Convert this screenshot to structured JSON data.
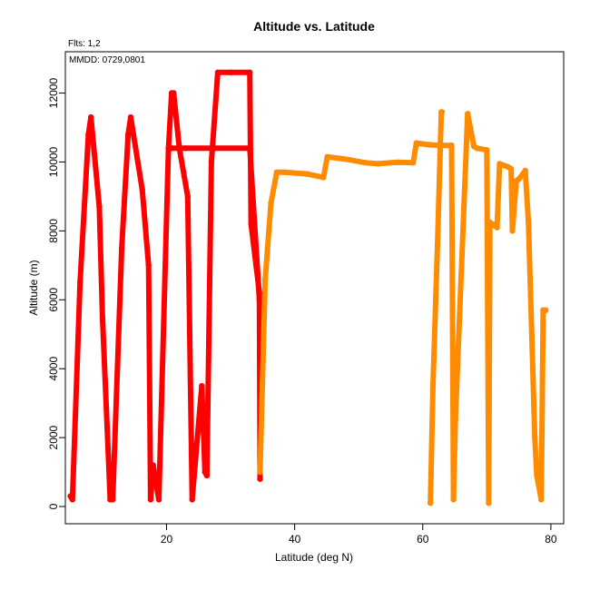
{
  "chart_data": {
    "type": "line",
    "title": "Altitude vs. Latitude",
    "annotations": [
      "Flts: 1,2",
      "MMDD: 0729,0801"
    ],
    "xlabel": "Latitude (deg N)",
    "ylabel": "Altitude (m)",
    "xlim": [
      4.2,
      82
    ],
    "ylim": [
      -500,
      13200
    ],
    "xticks": [
      20,
      40,
      60,
      80
    ],
    "yticks": [
      0,
      2000,
      4000,
      6000,
      8000,
      10000,
      12000
    ],
    "grid": false,
    "series": [
      {
        "color": "#ff0000",
        "x": [
          5.0,
          5.3,
          6.5,
          7.8,
          8.2,
          9.5,
          10.0,
          11.2,
          11.4,
          11.6,
          13.0,
          14.0,
          14.4,
          16.2,
          17.2,
          17.5,
          17.9,
          18.8,
          20.3,
          20.8,
          21.1,
          22.0,
          23.3,
          24.0,
          25.5,
          26.0,
          26.3,
          27.0,
          28.0,
          30.0,
          33.0,
          33.2,
          34.5,
          34.6
        ],
        "y": [
          300,
          200,
          6500,
          10800,
          11300,
          8700,
          5500,
          200,
          200,
          200,
          7500,
          10800,
          11300,
          9200,
          7000,
          200,
          1200,
          200,
          10400,
          12000,
          12000,
          10400,
          9000,
          200,
          3500,
          1000,
          900,
          10000,
          12600,
          12600,
          12600,
          8200,
          6200,
          800
        ]
      },
      {
        "color": "#ff0000",
        "x": [
          20.8,
          23.0,
          27.5,
          33.0,
          34.5
        ],
        "y": [
          10400,
          10400,
          10400,
          10400,
          6000
        ]
      },
      {
        "color": "#ff8c00",
        "x": [
          34.6,
          35.4,
          36.3,
          37.2,
          38.5,
          42.0,
          44.5,
          45.1,
          48.0,
          51.0,
          53.0,
          56.0,
          58.5,
          59.0,
          61.0,
          63.0,
          64.5,
          64.8,
          65.1,
          67.0,
          68.0,
          68.5,
          70.0,
          70.3,
          70.5,
          71.6,
          72.0,
          73.4,
          73.8,
          74.0,
          74.6,
          75.0,
          76.0,
          76.5,
          77.5,
          77.8,
          78.5,
          78.8,
          79.2
        ],
        "y": [
          1000,
          6600,
          8800,
          9700,
          9700,
          9650,
          9550,
          10150,
          10080,
          9980,
          9950,
          9990,
          9980,
          10550,
          10500,
          10480,
          10480,
          200,
          2500,
          11400,
          10450,
          10400,
          10350,
          100,
          8250,
          8100,
          9950,
          9850,
          9800,
          8000,
          9450,
          9500,
          9750,
          8250,
          2000,
          900,
          200,
          5700,
          5700
        ]
      },
      {
        "color": "#ff8c00",
        "x": [
          61.2,
          61.6,
          62.3,
          62.7,
          62.9,
          63.0
        ],
        "y": [
          100,
          3500,
          7600,
          10200,
          11450,
          11450
        ]
      }
    ]
  }
}
